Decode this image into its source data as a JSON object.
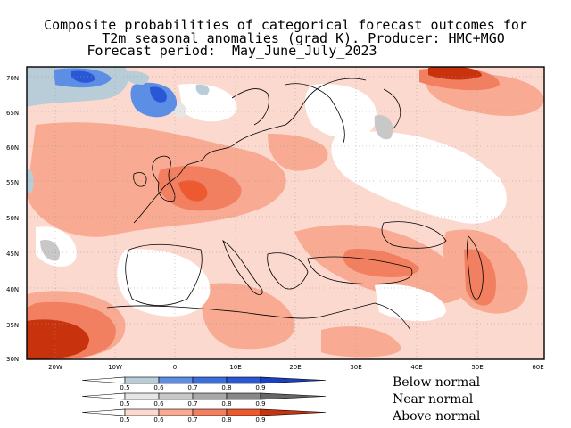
{
  "title_lines": [
    "Composite probabilities of categorical forecast outcomes for",
    "T2m seasonal anomalies (grad K). Producer: HMC+MGO",
    "Forecast period:  May_June_July_2023"
  ],
  "lat_ticks": [
    "70N",
    "65N",
    "60N",
    "55N",
    "50N",
    "45N",
    "40N",
    "35N",
    "30N"
  ],
  "lon_ticks": [
    "20W",
    "10W",
    "0",
    "10E",
    "20E",
    "30E",
    "40E",
    "50E",
    "60E"
  ],
  "legend": {
    "rows": [
      {
        "name": "Below normal",
        "colors": [
          "#b8cdd8",
          "#5c8ee6",
          "#3a6fe0",
          "#2a57d6",
          "#1b3fbf"
        ],
        "ticks": [
          "0.5",
          "0.6",
          "0.7",
          "0.8",
          "0.9"
        ]
      },
      {
        "name": "Near normal",
        "colors": [
          "#e6e6e6",
          "#c8c8c8",
          "#a8a8a8",
          "#888888",
          "#666666"
        ],
        "ticks": [
          "0.5",
          "0.6",
          "0.7",
          "0.8",
          "0.9"
        ]
      },
      {
        "name": "Above normal",
        "colors": [
          "#fcd9cf",
          "#f8aa92",
          "#f27f60",
          "#ee5a30",
          "#c8320c"
        ],
        "ticks": [
          "0.5",
          "0.6",
          "0.7",
          "0.8",
          "0.9"
        ]
      }
    ]
  }
}
